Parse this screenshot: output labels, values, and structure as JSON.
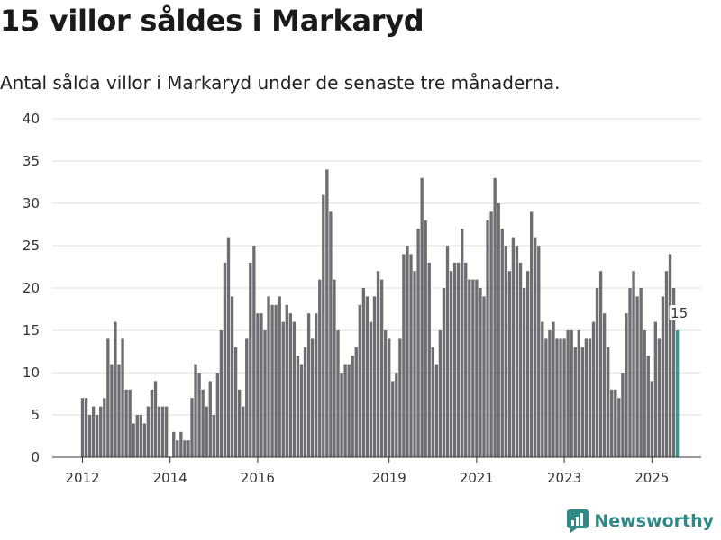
{
  "title": "15 villor såldes i Markaryd",
  "subtitle": "Antal sålda villor i Markaryd under de senaste tre månaderna.",
  "brand": {
    "name": "Newsworthy",
    "color": "#2f8a86",
    "icon": "newsworthy-logo-icon"
  },
  "colors": {
    "bar": "#6e6d72",
    "highlight": "#2a9d96",
    "grid": "#dddddd"
  },
  "chart_data": {
    "type": "bar",
    "ylim": [
      0,
      40
    ],
    "yticks": [
      0,
      5,
      10,
      15,
      20,
      25,
      30,
      35,
      40
    ],
    "xticks": [
      {
        "label": "2012",
        "index": 0
      },
      {
        "label": "2014",
        "index": 24
      },
      {
        "label": "2016",
        "index": 48
      },
      {
        "label": "2019",
        "index": 84
      },
      {
        "label": "2021",
        "index": 108
      },
      {
        "label": "2023",
        "index": 132
      },
      {
        "label": "2025",
        "index": 156
      }
    ],
    "values": [
      7,
      7,
      5,
      6,
      5,
      6,
      7,
      14,
      11,
      16,
      11,
      14,
      8,
      8,
      4,
      5,
      5,
      4,
      6,
      8,
      9,
      6,
      6,
      6,
      0,
      3,
      2,
      3,
      2,
      2,
      7,
      11,
      10,
      8,
      6,
      9,
      5,
      10,
      15,
      23,
      26,
      19,
      13,
      8,
      6,
      14,
      23,
      25,
      17,
      17,
      15,
      19,
      18,
      18,
      19,
      16,
      18,
      17,
      16,
      12,
      11,
      13,
      17,
      14,
      17,
      21,
      31,
      34,
      29,
      21,
      15,
      10,
      11,
      11,
      12,
      13,
      18,
      20,
      19,
      16,
      19,
      22,
      21,
      15,
      14,
      9,
      10,
      14,
      24,
      25,
      24,
      22,
      27,
      33,
      28,
      23,
      13,
      11,
      15,
      20,
      25,
      22,
      23,
      23,
      27,
      23,
      21,
      21,
      21,
      20,
      19,
      28,
      29,
      33,
      30,
      27,
      25,
      22,
      26,
      25,
      23,
      20,
      22,
      29,
      26,
      25,
      16,
      14,
      15,
      16,
      14,
      14,
      14,
      15,
      15,
      13,
      15,
      13,
      14,
      14,
      16,
      20,
      22,
      17,
      13,
      8,
      8,
      7,
      10,
      17,
      20,
      22,
      19,
      20,
      15,
      12,
      9,
      16,
      14,
      19,
      22,
      24,
      20,
      15
    ],
    "highlight_last": true,
    "last_label": "15"
  }
}
